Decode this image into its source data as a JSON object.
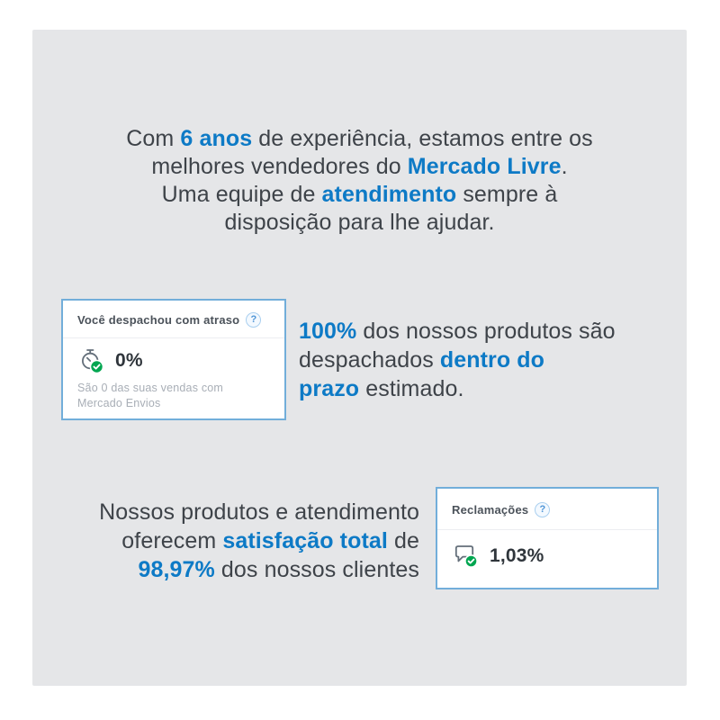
{
  "colors": {
    "accent_blue": "#0d7ac6",
    "panel_background": "#e5e6e8",
    "card_border_blue": "#72aeda",
    "badge_green": "#00a650",
    "body_text": "#3e4349",
    "muted_caption": "#a8aeb6"
  },
  "intro": {
    "lines": [
      [
        {
          "t": "Com "
        },
        {
          "t": "6 anos",
          "h": 1
        },
        {
          "t": " de experiência, estamos entre os"
        }
      ],
      [
        {
          "t": "melhores vendedores do "
        },
        {
          "t": "Mercado Livre",
          "h": 1
        },
        {
          "t": "."
        }
      ],
      [
        {
          "t": "Uma equipe de "
        },
        {
          "t": "atendimento",
          "h": 1
        },
        {
          "t": " sempre à"
        }
      ],
      [
        {
          "t": "disposição para lhe ajudar."
        }
      ]
    ]
  },
  "shipping_section": {
    "card": {
      "title": "Você despachou com atraso",
      "help_icon": "question-mark-circle",
      "value_icon": "stopwatch-with-green-check",
      "value": "0%",
      "caption": "São 0 das suas vendas com Mercado Envios"
    },
    "text_lines": [
      [
        {
          "t": "100%",
          "h": 1
        },
        {
          "t": " dos nossos produtos são"
        }
      ],
      [
        {
          "t": "despachados "
        },
        {
          "t": "dentro do",
          "h": 1
        }
      ],
      [
        {
          "t": "prazo",
          "h": 1
        },
        {
          "t": " estimado."
        }
      ]
    ]
  },
  "claims_section": {
    "text_lines": [
      [
        {
          "t": "Nossos produtos e atendimento"
        }
      ],
      [
        {
          "t": "oferecem "
        },
        {
          "t": "satisfação total",
          "h": 1
        },
        {
          "t": " de"
        }
      ],
      [
        {
          "t": "98,97%",
          "h": 1
        },
        {
          "t": " dos nossos clientes"
        }
      ]
    ],
    "card": {
      "title": "Reclamações",
      "help_icon": "question-mark-circle",
      "value_icon": "chat-bubble-with-green-check",
      "value": "1,03%"
    }
  },
  "help_glyph": "?"
}
